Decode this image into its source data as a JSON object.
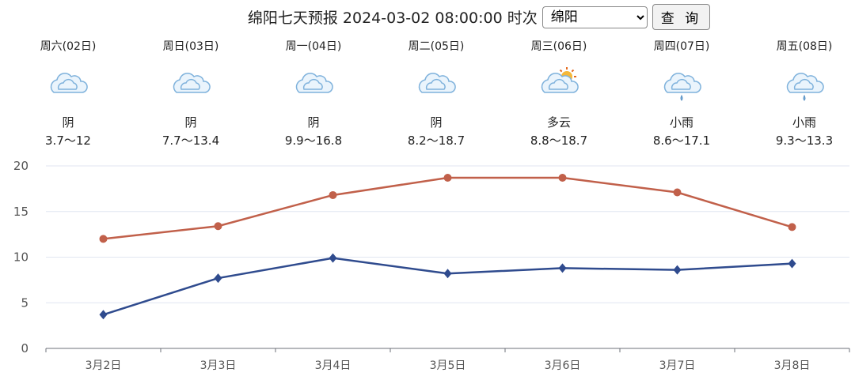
{
  "header": {
    "title": "绵阳七天预报 2024-03-02 08:00:00 时次",
    "city_selected": "绵阳",
    "query_label": "查 询"
  },
  "days": [
    {
      "name": "周六(02日)",
      "weather": "阴",
      "range": "3.7～12",
      "icon": "overcast-icon"
    },
    {
      "name": "周日(03日)",
      "weather": "阴",
      "range": "7.7～13.4",
      "icon": "overcast-icon"
    },
    {
      "name": "周一(04日)",
      "weather": "阴",
      "range": "9.9～16.8",
      "icon": "overcast-icon"
    },
    {
      "name": "周二(05日)",
      "weather": "阴",
      "range": "8.2～18.7",
      "icon": "overcast-icon"
    },
    {
      "name": "周三(06日)",
      "weather": "多云",
      "range": "8.8～18.7",
      "icon": "partly-cloudy-icon"
    },
    {
      "name": "周四(07日)",
      "weather": "小雨",
      "range": "8.6～17.1",
      "icon": "light-rain-icon"
    },
    {
      "name": "周五(08日)",
      "weather": "小雨",
      "range": "9.3～13.3",
      "icon": "light-rain-icon"
    }
  ],
  "chart_data": {
    "type": "line",
    "categories": [
      "3月2日",
      "3月3日",
      "3月4日",
      "3月5日",
      "3月6日",
      "3月7日",
      "3月8日"
    ],
    "series": [
      {
        "values": [
          12,
          13.4,
          16.8,
          18.7,
          18.7,
          17.1,
          13.3
        ],
        "color": "#c1604a",
        "marker": "circle"
      },
      {
        "values": [
          3.7,
          7.7,
          9.9,
          8.2,
          8.8,
          8.6,
          9.3
        ],
        "color": "#2f4b8e",
        "marker": "diamond"
      }
    ],
    "ylim": [
      0,
      20
    ],
    "yticks": [
      0,
      5,
      10,
      15,
      20
    ],
    "grid": true
  }
}
